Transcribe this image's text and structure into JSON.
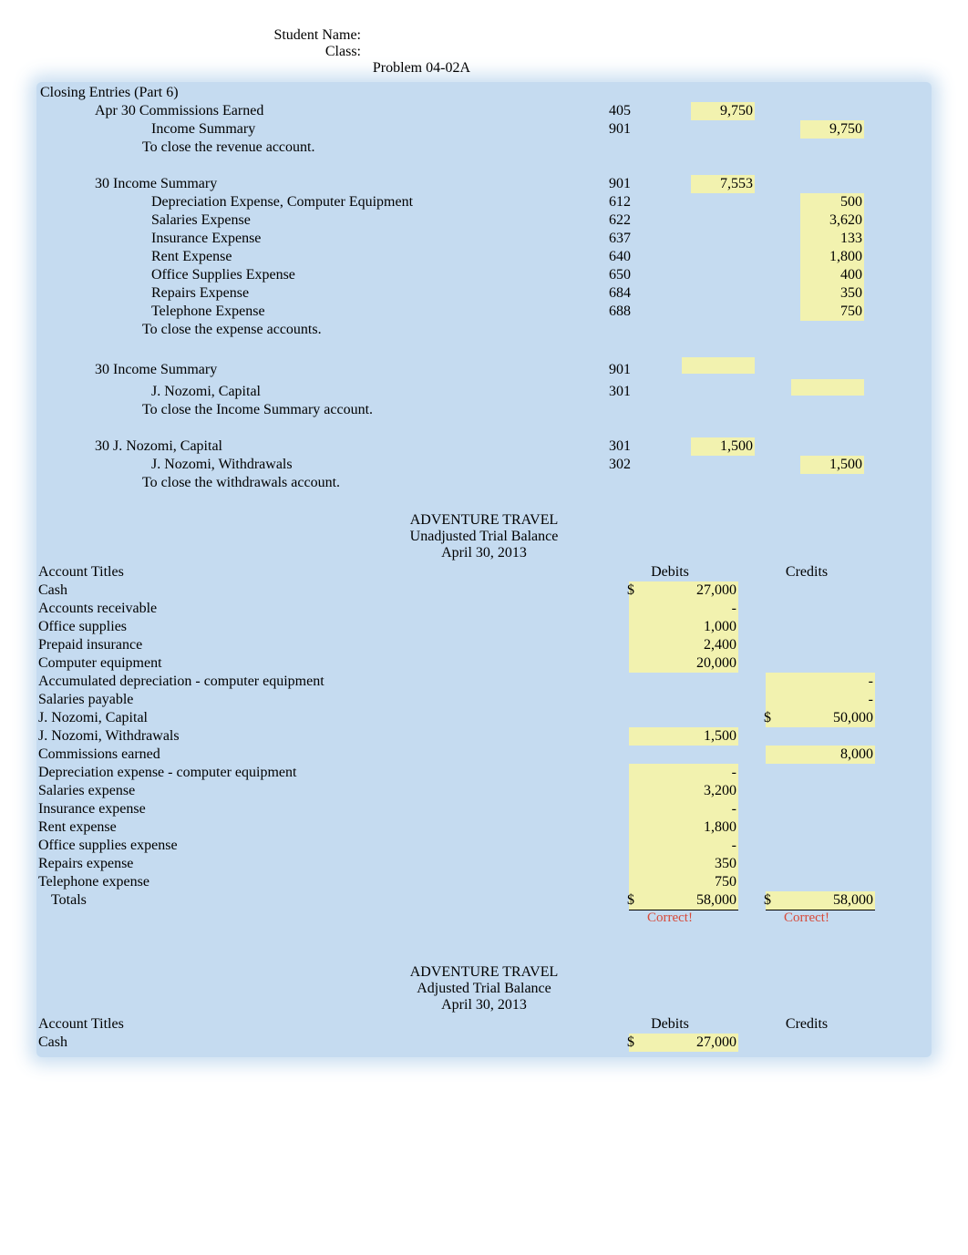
{
  "header": {
    "student_name_label": "Student Name:",
    "class_label": "Class:",
    "problem_title": "Problem 04-02A"
  },
  "closing": {
    "title": "Closing Entries (Part 6)",
    "entries": [
      {
        "date": "Apr 30",
        "label": "Commissions Earned",
        "code": "405",
        "debit": "9,750",
        "credit": "",
        "indent": 1
      },
      {
        "date": "",
        "label": "Income Summary",
        "code": "901",
        "debit": "",
        "credit": "9,750",
        "indent": 2
      },
      {
        "date": "",
        "label": "To close the revenue account.",
        "code": "",
        "debit": "",
        "credit": "",
        "indent": 3,
        "desc": true
      },
      {
        "blank": true
      },
      {
        "date": "30",
        "label": "Income Summary",
        "code": "901",
        "debit": "7,553",
        "credit": "",
        "indent": 1
      },
      {
        "date": "",
        "label": "Depreciation Expense, Computer Equipment",
        "code": "612",
        "debit": "",
        "credit": "500",
        "indent": 2
      },
      {
        "date": "",
        "label": "Salaries Expense",
        "code": "622",
        "debit": "",
        "credit": "3,620",
        "indent": 2
      },
      {
        "date": "",
        "label": "Insurance Expense",
        "code": "637",
        "debit": "",
        "credit": "133",
        "indent": 2
      },
      {
        "date": "",
        "label": "Rent Expense",
        "code": "640",
        "debit": "",
        "credit": "1,800",
        "indent": 2
      },
      {
        "date": "",
        "label": "Office Supplies Expense",
        "code": "650",
        "debit": "",
        "credit": "400",
        "indent": 2
      },
      {
        "date": "",
        "label": "Repairs Expense",
        "code": "684",
        "debit": "",
        "credit": "350",
        "indent": 2
      },
      {
        "date": "",
        "label": "Telephone Expense",
        "code": "688",
        "debit": "",
        "credit": "750",
        "indent": 2
      },
      {
        "date": "",
        "label": "To close the expense accounts.",
        "code": "",
        "debit": "",
        "credit": "",
        "indent": 3,
        "desc": true
      },
      {
        "blank": true
      },
      {
        "date": "30",
        "label": "Income Summary",
        "code": "901",
        "debit": "hl-empty",
        "credit": "",
        "indent": 1
      },
      {
        "date": "",
        "label": "J. Nozomi, Capital",
        "code": "301",
        "debit": "",
        "credit": "hl-empty",
        "indent": 2
      },
      {
        "date": "",
        "label": "To close the Income Summary account.",
        "code": "",
        "debit": "",
        "credit": "",
        "indent": 3,
        "desc": true
      },
      {
        "blank": true
      },
      {
        "date": "30",
        "label": "J. Nozomi, Capital",
        "code": "301",
        "debit": "1,500",
        "credit": "",
        "indent": 1
      },
      {
        "date": "",
        "label": "J. Nozomi, Withdrawals",
        "code": "302",
        "debit": "",
        "credit": "1,500",
        "indent": 2
      },
      {
        "date": "",
        "label": "To close the withdrawals account.",
        "code": "",
        "debit": "",
        "credit": "",
        "indent": 3,
        "desc": true
      }
    ]
  },
  "trial_balance_unadjusted": {
    "company": "ADVENTURE TRAVEL",
    "title": "Unadjusted Trial Balance",
    "date": "April 30, 2013",
    "col_account": "Account Titles",
    "col_debit": "Debits",
    "col_credit": "Credits",
    "rows": [
      {
        "label": "Cash",
        "debit": "27,000",
        "credit": "",
        "debit_cur": "$"
      },
      {
        "label": "Accounts receivable",
        "debit": "-",
        "credit": ""
      },
      {
        "label": "Office supplies",
        "debit": "1,000",
        "credit": ""
      },
      {
        "label": "Prepaid insurance",
        "debit": "2,400",
        "credit": ""
      },
      {
        "label": "Computer equipment",
        "debit": "20,000",
        "credit": ""
      },
      {
        "label": "Accumulated depreciation - computer equipment",
        "debit": "",
        "credit": "-"
      },
      {
        "label": "Salaries payable",
        "debit": "",
        "credit": "-"
      },
      {
        "label": "J. Nozomi, Capital",
        "debit": "",
        "credit": "50,000",
        "credit_cur": "$"
      },
      {
        "label": "J. Nozomi, Withdrawals",
        "debit": "1,500",
        "credit": ""
      },
      {
        "label": "Commissions earned",
        "debit": "",
        "credit": "8,000"
      },
      {
        "label": "Depreciation expense - computer equipment",
        "debit": "-",
        "credit": ""
      },
      {
        "label": "Salaries expense",
        "debit": "3,200",
        "credit": ""
      },
      {
        "label": "Insurance expense",
        "debit": "-",
        "credit": ""
      },
      {
        "label": "Rent expense",
        "debit": "1,800",
        "credit": ""
      },
      {
        "label": "Office supplies expense",
        "debit": "-",
        "credit": ""
      },
      {
        "label": "Repairs expense",
        "debit": "350",
        "credit": ""
      },
      {
        "label": "Telephone expense",
        "debit": "750",
        "credit": ""
      }
    ],
    "totals_label": "Totals",
    "totals_debit": "58,000",
    "totals_credit": "58,000",
    "correct": "Correct!"
  },
  "trial_balance_adjusted": {
    "company": "ADVENTURE TRAVEL",
    "title": "Adjusted Trial Balance",
    "date": "April 30, 2013",
    "col_account": "Account Titles",
    "col_debit": "Debits",
    "col_credit": "Credits",
    "rows": [
      {
        "label": "Cash",
        "debit": "27,000",
        "credit": "",
        "debit_cur": "$"
      }
    ]
  },
  "colors": {
    "section_bg": "#c5dbf0",
    "highlight": "#f2f2af",
    "correct_text": "#d74a3a",
    "body_text": "#000000",
    "page_bg": "#ffffff"
  }
}
